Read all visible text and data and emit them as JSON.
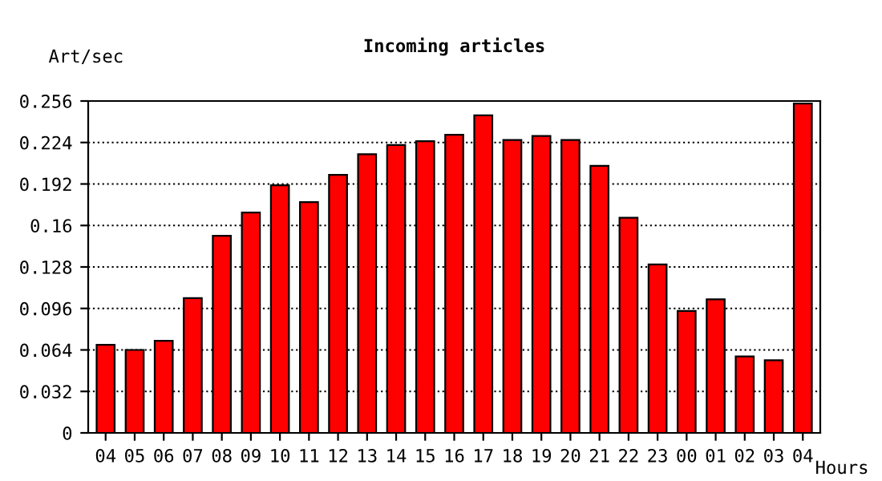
{
  "chart_data": {
    "type": "bar",
    "title": "Incoming articles",
    "ylabel": "Art/sec",
    "xlabel": "Hours",
    "categories": [
      "04",
      "05",
      "06",
      "07",
      "08",
      "09",
      "10",
      "11",
      "12",
      "13",
      "14",
      "15",
      "16",
      "17",
      "18",
      "19",
      "20",
      "21",
      "22",
      "23",
      "00",
      "01",
      "02",
      "03",
      "04"
    ],
    "values": [
      0.068,
      0.064,
      0.071,
      0.104,
      0.152,
      0.17,
      0.191,
      0.178,
      0.199,
      0.215,
      0.222,
      0.225,
      0.23,
      0.245,
      0.226,
      0.229,
      0.226,
      0.206,
      0.166,
      0.13,
      0.094,
      0.103,
      0.059,
      0.056,
      0.254
    ],
    "color": "#ff0000",
    "ylim": [
      0,
      0.256
    ],
    "yticks": [
      0,
      0.032,
      0.064,
      0.096,
      0.128,
      0.16,
      0.192,
      0.224,
      0.256
    ],
    "grid": "y",
    "line_style": "dotted"
  }
}
